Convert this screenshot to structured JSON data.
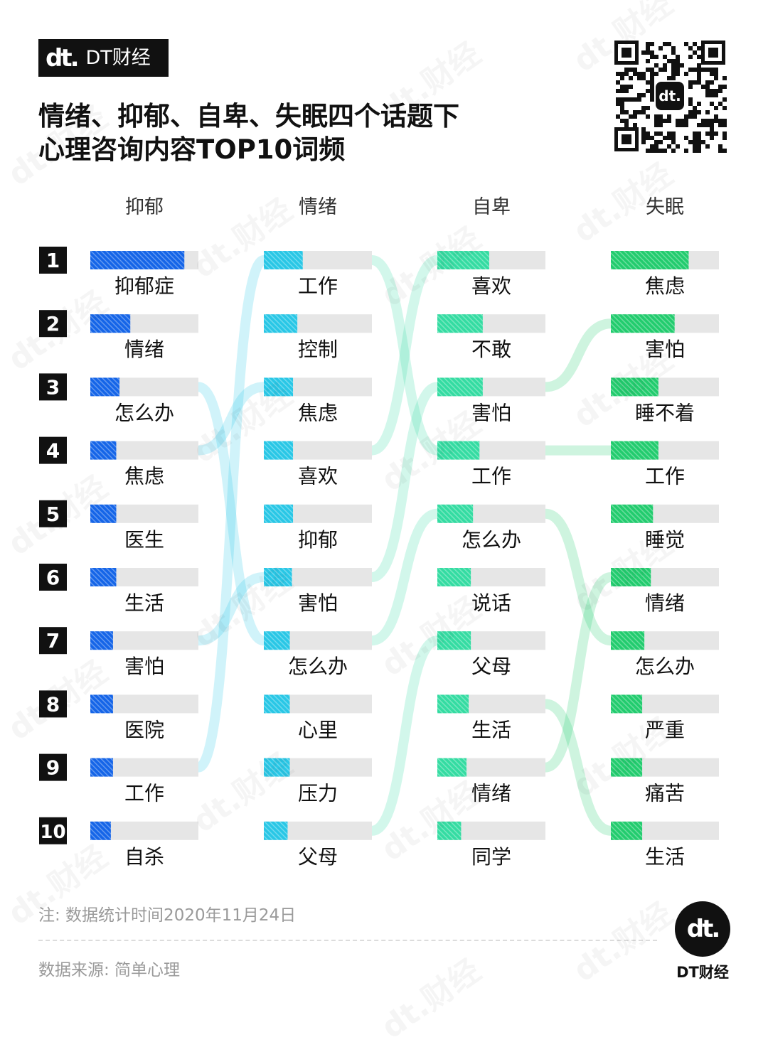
{
  "brand": {
    "mark": "dt.",
    "name": "DT财经"
  },
  "title_lines": [
    "情绪、抑郁、自卑、失眠四个话题下",
    "心理咨询内容TOP10词频"
  ],
  "note": "注: 数据统计时间2020年11月24日",
  "source": "数据来源: 简单心理",
  "footer_brand": "DT财经",
  "watermark_text": "dt.财经",
  "colors": {
    "抑郁": "#1565e8",
    "情绪": "#29c7e6",
    "自卑": "#34dca2",
    "失眠": "#22cc6e",
    "track": "#e6e6e6",
    "rank_bg": "#111111"
  },
  "chart_data": {
    "type": "bar",
    "ranks": [
      "1",
      "2",
      "3",
      "4",
      "5",
      "6",
      "7",
      "8",
      "9",
      "10"
    ],
    "series": [
      {
        "name": "抑郁",
        "words": [
          "抑郁症",
          "情绪",
          "怎么办",
          "焦虑",
          "医生",
          "生活",
          "害怕",
          "医院",
          "工作",
          "自杀"
        ],
        "values": [
          0.87,
          0.37,
          0.27,
          0.24,
          0.24,
          0.24,
          0.21,
          0.21,
          0.21,
          0.19
        ]
      },
      {
        "name": "情绪",
        "words": [
          "工作",
          "控制",
          "焦虑",
          "喜欢",
          "抑郁",
          "害怕",
          "怎么办",
          "心里",
          "压力",
          "父母"
        ],
        "values": [
          0.36,
          0.31,
          0.27,
          0.27,
          0.27,
          0.26,
          0.24,
          0.24,
          0.24,
          0.22
        ]
      },
      {
        "name": "自卑",
        "words": [
          "喜欢",
          "不敢",
          "害怕",
          "工作",
          "怎么办",
          "说话",
          "父母",
          "生活",
          "情绪",
          "同学"
        ],
        "values": [
          0.48,
          0.42,
          0.42,
          0.39,
          0.33,
          0.31,
          0.31,
          0.29,
          0.27,
          0.22
        ]
      },
      {
        "name": "失眠",
        "words": [
          "焦虑",
          "害怕",
          "睡不着",
          "工作",
          "睡觉",
          "情绪",
          "怎么办",
          "严重",
          "痛苦",
          "生活"
        ],
        "values": [
          0.72,
          0.59,
          0.44,
          0.44,
          0.39,
          0.37,
          0.31,
          0.29,
          0.29,
          0.29
        ]
      }
    ]
  }
}
